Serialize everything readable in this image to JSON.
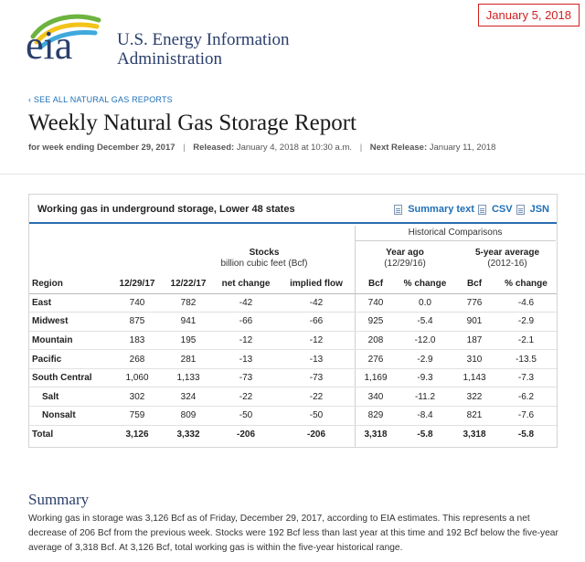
{
  "date_stamp": "January 5, 2018",
  "logo": {
    "text": "eia"
  },
  "agency": {
    "line1": "U.S. Energy Information",
    "line2": "Administration"
  },
  "back_link": "‹ SEE ALL NATURAL GAS REPORTS",
  "title": "Weekly Natural Gas Storage Report",
  "meta": {
    "week_label": "for week ending December 29, 2017",
    "released_label": "Released:",
    "released_value": "January 4, 2018 at 10:30 a.m.",
    "next_label": "Next Release:",
    "next_value": "January 11, 2018",
    "sep": "|"
  },
  "table": {
    "title": "Working gas in underground storage, Lower 48 states",
    "links": {
      "summary": "Summary text",
      "csv": "CSV",
      "json": "JSN"
    },
    "historical_header": "Historical Comparisons",
    "stocks_group": {
      "title": "Stocks",
      "sub": "billion cubic feet (Bcf)"
    },
    "year_ago_group": {
      "title": "Year ago",
      "sub": "(12/29/16)"
    },
    "five_year_group": {
      "title": "5-year average",
      "sub": "(2012-16)"
    },
    "columns": [
      "Region",
      "12/29/17",
      "12/22/17",
      "net change",
      "implied flow",
      "Bcf",
      "% change",
      "Bcf",
      "% change"
    ],
    "rows": [
      [
        "East",
        "740",
        "782",
        "-42",
        "-42",
        "740",
        "0.0",
        "776",
        "-4.6"
      ],
      [
        "Midwest",
        "875",
        "941",
        "-66",
        "-66",
        "925",
        "-5.4",
        "901",
        "-2.9"
      ],
      [
        "Mountain",
        "183",
        "195",
        "-12",
        "-12",
        "208",
        "-12.0",
        "187",
        "-2.1"
      ],
      [
        "Pacific",
        "268",
        "281",
        "-13",
        "-13",
        "276",
        "-2.9",
        "310",
        "-13.5"
      ],
      [
        "South Central",
        "1,060",
        "1,133",
        "-73",
        "-73",
        "1,169",
        "-9.3",
        "1,143",
        "-7.3"
      ],
      [
        "Salt",
        "302",
        "324",
        "-22",
        "-22",
        "340",
        "-11.2",
        "322",
        "-6.2"
      ],
      [
        "Nonsalt",
        "759",
        "809",
        "-50",
        "-50",
        "829",
        "-8.4",
        "821",
        "-7.6"
      ],
      [
        "Total",
        "3,126",
        "3,332",
        "-206",
        "-206",
        "3,318",
        "-5.8",
        "3,318",
        "-5.8"
      ]
    ]
  },
  "summary": {
    "title": "Summary",
    "text": "Working gas in storage was 3,126 Bcf as of Friday, December 29, 2017, according to EIA estimates. This represents a net decrease of 206 Bcf from the previous week. Stocks were 192 Bcf less than last year at this time and 192 Bcf below the five-year average of 3,318 Bcf. At 3,126 Bcf, total working gas is within the five-year historical range."
  },
  "colors": {
    "accent_blue": "#1e6fb8",
    "navy": "#2a3e6c",
    "stamp_red": "#d21f1f",
    "logo_green": "#6db33f",
    "logo_yellow": "#f2c319",
    "logo_blue": "#3fa9dc"
  }
}
